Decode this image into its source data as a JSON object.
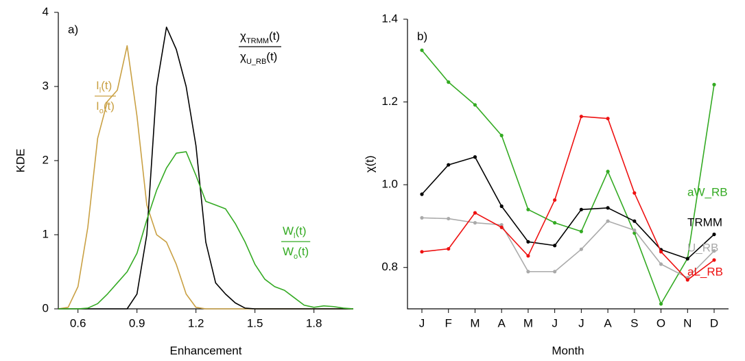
{
  "chart_data": [
    {
      "type": "line",
      "panel_label": "a)",
      "xlabel": "Enhancement",
      "ylabel": "KDE",
      "xlim": [
        0.5,
        2.0
      ],
      "ylim": [
        0,
        4
      ],
      "xticks": [
        0.6,
        0.9,
        1.2,
        1.5,
        1.8
      ],
      "yticks": [
        0,
        1,
        2,
        3,
        4
      ],
      "x": [
        0.5,
        0.55,
        0.6,
        0.65,
        0.7,
        0.75,
        0.8,
        0.85,
        0.9,
        0.95,
        1.0,
        1.05,
        1.1,
        1.15,
        1.2,
        1.25,
        1.3,
        1.35,
        1.4,
        1.45,
        1.5,
        1.55,
        1.6,
        1.65,
        1.7,
        1.75,
        1.8,
        1.85,
        1.9,
        1.95,
        2.0
      ],
      "series": [
        {
          "color": "#c9a043",
          "label": {
            "numerator": [
              "I",
              "l",
              "(t)"
            ],
            "denominator": [
              "I",
              "o",
              "(t)"
            ]
          },
          "values": [
            0,
            0.02,
            0.3,
            1.1,
            2.3,
            2.8,
            2.95,
            3.55,
            2.6,
            1.4,
            1.0,
            0.9,
            0.6,
            0.2,
            0.02,
            0,
            0,
            0,
            0,
            0,
            0,
            0,
            0,
            0,
            0,
            0,
            0,
            0,
            0,
            0,
            0
          ]
        },
        {
          "color": "#000000",
          "label": {
            "numerator": [
              "χ",
              "TRMM",
              "(t)"
            ],
            "denominator": [
              "χ",
              "U_RB",
              "(t)"
            ]
          },
          "values": [
            0,
            0,
            0,
            0,
            0,
            0,
            0,
            0,
            0.2,
            1.0,
            3.0,
            3.8,
            3.5,
            3.0,
            2.2,
            0.9,
            0.35,
            0.2,
            0.08,
            0.01,
            0,
            0,
            0,
            0,
            0,
            0,
            0,
            0,
            0,
            0,
            0
          ]
        },
        {
          "color": "#33aa22",
          "label": {
            "numerator": [
              "W",
              "l",
              "(t)"
            ],
            "denominator": [
              "W",
              "o",
              "(t)"
            ]
          },
          "values": [
            0,
            0,
            0,
            0.01,
            0.07,
            0.2,
            0.35,
            0.5,
            0.75,
            1.2,
            1.6,
            1.9,
            2.1,
            2.12,
            1.8,
            1.45,
            1.4,
            1.35,
            1.15,
            0.9,
            0.6,
            0.4,
            0.3,
            0.25,
            0.15,
            0.05,
            0.02,
            0.04,
            0.03,
            0.01,
            0
          ]
        }
      ]
    },
    {
      "type": "line",
      "panel_label": "b)",
      "xlabel": "Month",
      "ylabel": "χ(t)",
      "categories": [
        "J",
        "F",
        "M",
        "A",
        "M",
        "J",
        "J",
        "A",
        "S",
        "O",
        "N",
        "D"
      ],
      "ylim": [
        0.7,
        1.4
      ],
      "yticks": [
        0.8,
        {
          "value": 1.0,
          "label": "1.0"
        },
        1.2,
        1.4
      ],
      "series": [
        {
          "name": "aW_RB",
          "color": "#33aa22",
          "values": [
            1.325,
            1.248,
            1.193,
            1.119,
            0.94,
            0.908,
            0.887,
            1.032,
            0.883,
            0.712,
            0.822,
            1.242
          ]
        },
        {
          "name": "TRMM",
          "color": "#000000",
          "values": [
            0.977,
            1.048,
            1.067,
            0.948,
            0.862,
            0.853,
            0.94,
            0.944,
            0.912,
            0.843,
            0.821,
            0.88
          ]
        },
        {
          "name": "U_RB",
          "color": "#aaaaaa",
          "values": [
            0.92,
            0.918,
            0.908,
            0.903,
            0.79,
            0.79,
            0.844,
            0.912,
            0.89,
            0.808,
            0.775,
            0.84
          ]
        },
        {
          "name": "aL_RB",
          "color": "#ee1111",
          "values": [
            0.838,
            0.845,
            0.932,
            0.897,
            0.828,
            0.963,
            1.165,
            1.16,
            0.98,
            0.838,
            0.77,
            0.818
          ]
        }
      ]
    }
  ]
}
